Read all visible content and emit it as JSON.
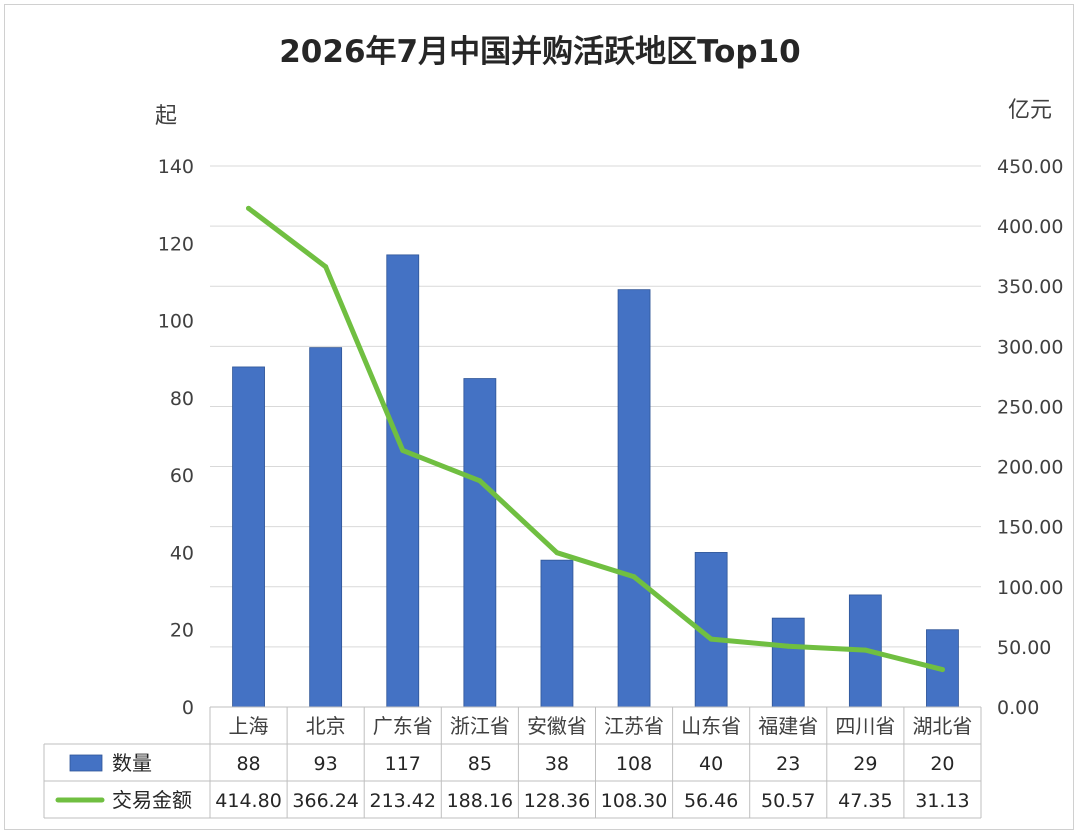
{
  "chart_data": {
    "type": "bar",
    "title": "2026年7月中国并购活跃地区Top10",
    "y_left_unit": "起",
    "y_right_unit": "亿元",
    "categories": [
      "上海",
      "北京",
      "广东省",
      "浙江省",
      "安徽省",
      "江苏省",
      "山东省",
      "福建省",
      "四川省",
      "湖北省"
    ],
    "series": [
      {
        "name": "数量",
        "type": "bar",
        "axis": "left",
        "color": "#4472C4",
        "values": [
          88,
          93,
          117,
          85,
          38,
          108,
          40,
          23,
          29,
          20
        ],
        "labels": [
          "88",
          "93",
          "117",
          "85",
          "38",
          "108",
          "40",
          "23",
          "29",
          "20"
        ]
      },
      {
        "name": "交易金额",
        "type": "line",
        "axis": "right",
        "color": "#70BF41",
        "values": [
          414.8,
          366.24,
          213.42,
          188.16,
          128.36,
          108.3,
          56.46,
          50.57,
          47.35,
          31.13
        ],
        "labels": [
          "414.80",
          "366.24",
          "213.42",
          "188.16",
          "128.36",
          "108.30",
          "56.46",
          "50.57",
          "47.35",
          "31.13"
        ]
      }
    ],
    "y_left": {
      "min": 0,
      "max": 140,
      "step": 20,
      "ticks": [
        "0",
        "20",
        "40",
        "60",
        "80",
        "100",
        "120",
        "140"
      ]
    },
    "y_right": {
      "min": 0,
      "max": 450,
      "step": 50,
      "ticks": [
        "0.00",
        "50.00",
        "100.00",
        "150.00",
        "200.00",
        "250.00",
        "300.00",
        "350.00",
        "400.00",
        "450.00"
      ]
    },
    "grid": true,
    "legend": "data-table"
  }
}
